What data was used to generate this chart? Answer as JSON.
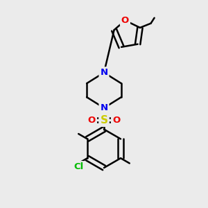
{
  "bg_color": "#ebebeb",
  "bond_color": "#000000",
  "bond_width": 1.8,
  "atom_colors": {
    "N": "#0000ee",
    "O": "#ee0000",
    "S": "#cccc00",
    "Cl": "#00bb00",
    "C": "#000000"
  },
  "figsize": [
    3.0,
    3.0
  ],
  "dpi": 100,
  "xlim": [
    0,
    10
  ],
  "ylim": [
    0,
    10.5
  ]
}
